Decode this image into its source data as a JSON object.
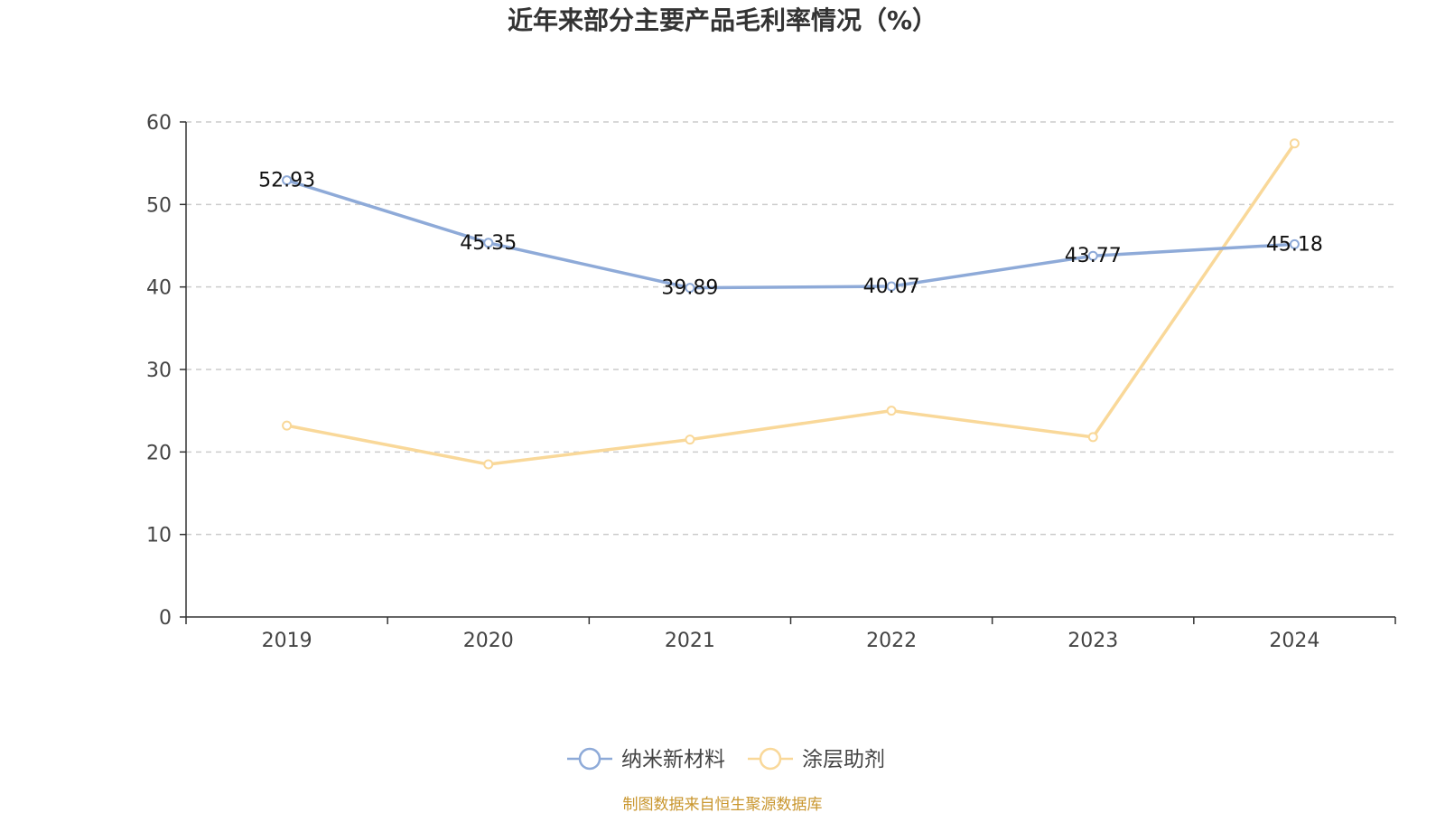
{
  "chart_data": {
    "type": "line",
    "title": "近年来部分主要产品毛利率情况（%）",
    "categories": [
      "2019",
      "2020",
      "2021",
      "2022",
      "2023",
      "2024"
    ],
    "ylim": [
      0,
      60
    ],
    "yticks": [
      0,
      10,
      20,
      30,
      40,
      50,
      60
    ],
    "grid": true,
    "legend_position": "bottom-center",
    "series": [
      {
        "name": "纳米新材料",
        "values": [
          52.93,
          45.35,
          39.89,
          40.07,
          43.77,
          45.18
        ],
        "labels": [
          "52.93",
          "45.35",
          "39.89",
          "40.07",
          "43.77",
          "45.18"
        ],
        "color": "#8eaad8"
      },
      {
        "name": "涂层助剂",
        "values": [
          23.2,
          18.5,
          21.5,
          25.0,
          21.8,
          57.4
        ],
        "color": "#f9d899"
      }
    ]
  },
  "source": "制图数据来自恒生聚源数据库"
}
